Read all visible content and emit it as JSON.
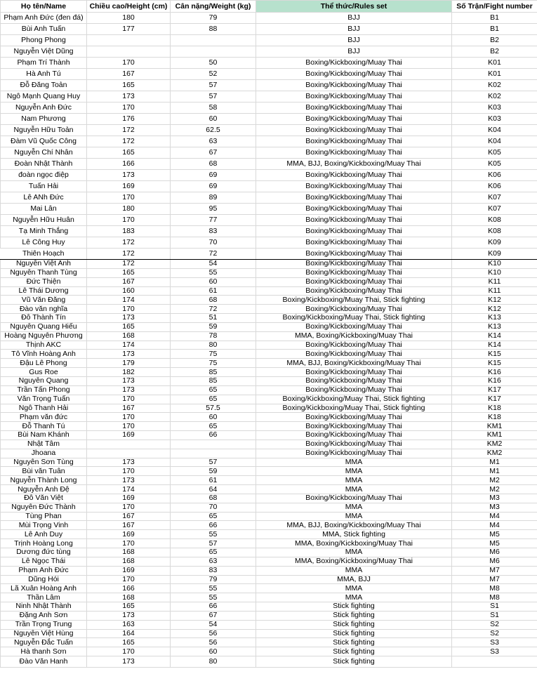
{
  "headers": {
    "name": "Họ tên/Name",
    "height": "Chiều cao/Height (cm)",
    "weight": "Cân nặng/Weight (kg)",
    "rules": "Thể thức/Rules set",
    "fight": "Số Trận/Fight number"
  },
  "colors": {
    "rules_header_bg": "#b7e1cd",
    "grid": "#d9d9d9"
  },
  "rows": [
    {
      "name": "Phạm Anh Đức (đen đá)",
      "height": "180",
      "weight": "79",
      "rules": "BJJ",
      "fight": "B1"
    },
    {
      "name": "Bùi Anh Tuấn",
      "height": "177",
      "weight": "88",
      "rules": "BJJ",
      "fight": "B1"
    },
    {
      "name": "Phong Phong",
      "height": "",
      "weight": "",
      "rules": "BJJ",
      "fight": "B2"
    },
    {
      "name": "Nguyễn Việt Dũng",
      "height": "",
      "weight": "",
      "rules": "BJJ",
      "fight": "B2"
    },
    {
      "name": "Phạm Trí Thành",
      "height": "170",
      "weight": "50",
      "rules": "Boxing/Kickboxing/Muay Thai",
      "fight": "K01"
    },
    {
      "name": "Hà Anh Tú",
      "height": "167",
      "weight": "52",
      "rules": "Boxing/Kickboxing/Muay Thai",
      "fight": "K01"
    },
    {
      "name": "Đỗ Đăng Toản",
      "height": "165",
      "weight": "57",
      "rules": "Boxing/Kickboxing/Muay Thai",
      "fight": "K02"
    },
    {
      "name": "Ngô Mạnh Quang Huy",
      "height": "173",
      "weight": "57",
      "rules": "Boxing/Kickboxing/Muay Thai",
      "fight": "K02"
    },
    {
      "name": "Nguyễn Anh Đức",
      "height": "170",
      "weight": "58",
      "rules": "Boxing/Kickboxing/Muay Thai",
      "fight": "K03"
    },
    {
      "name": "Nam Phương",
      "height": "176",
      "weight": "60",
      "rules": "Boxing/Kickboxing/Muay Thai",
      "fight": "K03"
    },
    {
      "name": "Nguyễn Hữu Toản",
      "height": "172",
      "weight": "62.5",
      "rules": "Boxing/Kickboxing/Muay Thai",
      "fight": "K04"
    },
    {
      "name": "Đàm Vũ Quốc Công",
      "height": "172",
      "weight": "63",
      "rules": "Boxing/Kickboxing/Muay Thai",
      "fight": "K04"
    },
    {
      "name": "Nguyễn Chí Nhân",
      "height": "165",
      "weight": "67",
      "rules": "Boxing/Kickboxing/Muay Thai",
      "fight": "K05"
    },
    {
      "name": "Đoàn Nhật Thành",
      "height": "166",
      "weight": "68",
      "rules": "MMA, BJJ, Boxing/Kickboxing/Muay Thai",
      "fight": "K05"
    },
    {
      "name": "đoàn ngọc điệp",
      "height": "173",
      "weight": "69",
      "rules": "Boxing/Kickboxing/Muay Thai",
      "fight": "K06"
    },
    {
      "name": "Tuấn Hải",
      "height": "169",
      "weight": "69",
      "rules": "Boxing/Kickboxing/Muay Thai",
      "fight": "K06"
    },
    {
      "name": "Lê ANh Đức",
      "height": "170",
      "weight": "89",
      "rules": "Boxing/Kickboxing/Muay Thai",
      "fight": "K07"
    },
    {
      "name": "Mai Lân",
      "height": "180",
      "weight": "95",
      "rules": "Boxing/Kickboxing/Muay Thai",
      "fight": "K07"
    },
    {
      "name": "Nguyễn Hữu Huân",
      "height": "170",
      "weight": "77",
      "rules": "Boxing/Kickboxing/Muay Thai",
      "fight": "K08"
    },
    {
      "name": "Tạ Minh Thắng",
      "height": "183",
      "weight": "83",
      "rules": "Boxing/Kickboxing/Muay Thai",
      "fight": "K08"
    },
    {
      "name": "Lê Công Huy",
      "height": "172",
      "weight": "70",
      "rules": "Boxing/Kickboxing/Muay Thai",
      "fight": "K09"
    },
    {
      "name": "Thiên Hoạch",
      "height": "172",
      "weight": "72",
      "rules": "Boxing/Kickboxing/Muay Thai",
      "fight": "K09"
    },
    {
      "name": "Nguyễn Việt Anh",
      "height": "172",
      "weight": "54",
      "rules": "Boxing/Kickboxing/Muay Thai",
      "fight": "K10"
    },
    {
      "name": "Nguyễn Thanh Tùng",
      "height": "165",
      "weight": "55",
      "rules": "Boxing/Kickboxing/Muay Thai",
      "fight": "K10"
    },
    {
      "name": "Đức Thiện",
      "height": "167",
      "weight": "60",
      "rules": "Boxing/Kickboxing/Muay Thai",
      "fight": "K11"
    },
    {
      "name": "Lê Thái Dương",
      "height": "160",
      "weight": "61",
      "rules": "Boxing/Kickboxing/Muay Thai",
      "fight": "K11"
    },
    {
      "name": "Vũ Văn Đăng",
      "height": "174",
      "weight": "68",
      "rules": "Boxing/Kickboxing/Muay Thai, Stick fighting",
      "fight": "K12"
    },
    {
      "name": "Đào văn nghĩa",
      "height": "170",
      "weight": "72",
      "rules": "Boxing/Kickboxing/Muay Thai",
      "fight": "K12"
    },
    {
      "name": "Đỗ Thành Tín",
      "height": "173",
      "weight": "51",
      "rules": "Boxing/Kickboxing/Muay Thai, Stick fighting",
      "fight": "K13"
    },
    {
      "name": "Nguyễn Quang Hiếu",
      "height": "165",
      "weight": "59",
      "rules": "Boxing/Kickboxing/Muay Thai",
      "fight": "K13"
    },
    {
      "name": "Hoàng Nguyên Phương",
      "height": "168",
      "weight": "78",
      "rules": "MMA, Boxing/Kickboxing/Muay Thai",
      "fight": "K14"
    },
    {
      "name": "Thịnh AKC",
      "height": "174",
      "weight": "80",
      "rules": "Boxing/Kickboxing/Muay Thai",
      "fight": "K14"
    },
    {
      "name": "Tô Vĩnh Hoàng Anh",
      "height": "173",
      "weight": "75",
      "rules": "Boxing/Kickboxing/Muay Thai",
      "fight": "K15"
    },
    {
      "name": "Đậu Lê Phong",
      "height": "179",
      "weight": "75",
      "rules": "MMA, BJJ, Boxing/Kickboxing/Muay Thai",
      "fight": "K15"
    },
    {
      "name": "Gus Roe",
      "height": "182",
      "weight": "85",
      "rules": "Boxing/Kickboxing/Muay Thai",
      "fight": "K16"
    },
    {
      "name": "Nguyễn Quang",
      "height": "173",
      "weight": "85",
      "rules": "Boxing/Kickboxing/Muay Thai",
      "fight": "K16"
    },
    {
      "name": "Trần Tấn Phong",
      "height": "173",
      "weight": "65",
      "rules": "Boxing/Kickboxing/Muay Thai",
      "fight": "K17"
    },
    {
      "name": "Văn Trọng Tuấn",
      "height": "170",
      "weight": "65",
      "rules": "Boxing/Kickboxing/Muay Thai, Stick fighting",
      "fight": "K17"
    },
    {
      "name": "Ngô Thanh Hải",
      "height": "167",
      "weight": "57.5",
      "rules": "Boxing/Kickboxing/Muay Thai, Stick fighting",
      "fight": "K18"
    },
    {
      "name": "Phạm văn đức",
      "height": "170",
      "weight": "60",
      "rules": "Boxing/Kickboxing/Muay Thai",
      "fight": "K18"
    },
    {
      "name": "Đỗ Thanh Tú",
      "height": "170",
      "weight": "65",
      "rules": "Boxing/Kickboxing/Muay Thai",
      "fight": "KM1"
    },
    {
      "name": "Bùi Nam Khánh",
      "height": "169",
      "weight": "66",
      "rules": "Boxing/Kickboxing/Muay Thai",
      "fight": "KM1"
    },
    {
      "name": "Nhật Tâm",
      "height": "",
      "weight": "",
      "rules": "Boxing/Kickboxing/Muay Thai",
      "fight": "KM2"
    },
    {
      "name": "Jhoana",
      "height": "",
      "weight": "",
      "rules": "Boxing/Kickboxing/Muay Thai",
      "fight": "KM2"
    },
    {
      "name": "Nguyễn Sơn Tùng",
      "height": "173",
      "weight": "57",
      "rules": "MMA",
      "fight": "M1"
    },
    {
      "name": "Bùi văn Tuân",
      "height": "170",
      "weight": "59",
      "rules": "MMA",
      "fight": "M1"
    },
    {
      "name": "Nguyễn Thành Long",
      "height": "173",
      "weight": "61",
      "rules": "MMA",
      "fight": "M2"
    },
    {
      "name": "Nguyễn Anh Đệ",
      "height": "174",
      "weight": "64",
      "rules": "MMA",
      "fight": "M2"
    },
    {
      "name": "Đỗ Văn Việt",
      "height": "169",
      "weight": "68",
      "rules": "Boxing/Kickboxing/Muay Thai",
      "fight": "M3"
    },
    {
      "name": "Nguyễn Đức Thành",
      "height": "170",
      "weight": "70",
      "rules": "MMA",
      "fight": "M3"
    },
    {
      "name": "Tùng Phan",
      "height": "167",
      "weight": "65",
      "rules": "MMA",
      "fight": "M4"
    },
    {
      "name": "Mùi Trọng  Vinh",
      "height": "167",
      "weight": "66",
      "rules": "MMA, BJJ, Boxing/Kickboxing/Muay Thai",
      "fight": "M4"
    },
    {
      "name": "Lê Anh Duy",
      "height": "169",
      "weight": "55",
      "rules": "MMA, Stick fighting",
      "fight": "M5"
    },
    {
      "name": "Trịnh Hoàng Long",
      "height": "170",
      "weight": "57",
      "rules": "MMA, Boxing/Kickboxing/Muay Thai",
      "fight": "M5"
    },
    {
      "name": "Dương đức tùng",
      "height": "168",
      "weight": "65",
      "rules": "MMA",
      "fight": "M6"
    },
    {
      "name": "Lê Ngọc Thái",
      "height": "168",
      "weight": "63",
      "rules": "MMA, Boxing/Kickboxing/Muay Thai",
      "fight": "M6"
    },
    {
      "name": "Phạm Anh Đức",
      "height": "169",
      "weight": "83",
      "rules": "MMA",
      "fight": "M7"
    },
    {
      "name": "Dũng Hói",
      "height": "170",
      "weight": "79",
      "rules": "MMA, BJJ",
      "fight": "M7"
    },
    {
      "name": "Lã Xuân Hoàng Anh",
      "height": "166",
      "weight": "55",
      "rules": "MMA",
      "fight": "M8"
    },
    {
      "name": "Thần Lâm",
      "height": "168",
      "weight": "55",
      "rules": "MMA",
      "fight": "M8"
    },
    {
      "name": "Ninh Nhật Thành",
      "height": "165",
      "weight": "66",
      "rules": "Stick fighting",
      "fight": "S1"
    },
    {
      "name": "Đặng Anh Sơn",
      "height": "173",
      "weight": "67",
      "rules": "Stick fighting",
      "fight": "S1"
    },
    {
      "name": "Trần Trọng Trung",
      "height": "163",
      "weight": "54",
      "rules": "Stick fighting",
      "fight": "S2"
    },
    {
      "name": "Nguyễn Việt Hùng",
      "height": "164",
      "weight": "56",
      "rules": "Stick fighting",
      "fight": "S2"
    },
    {
      "name": "Nguyễn Đắc Tuấn",
      "height": "165",
      "weight": "56",
      "rules": "Stick fighting",
      "fight": "S3"
    },
    {
      "name": "Hà thanh Sơn",
      "height": "170",
      "weight": "60",
      "rules": "Stick fighting",
      "fight": "S3"
    },
    {
      "name": "Đào Văn Hanh",
      "height": "173",
      "weight": "80",
      "rules": "Stick fighting",
      "fight": ""
    }
  ]
}
